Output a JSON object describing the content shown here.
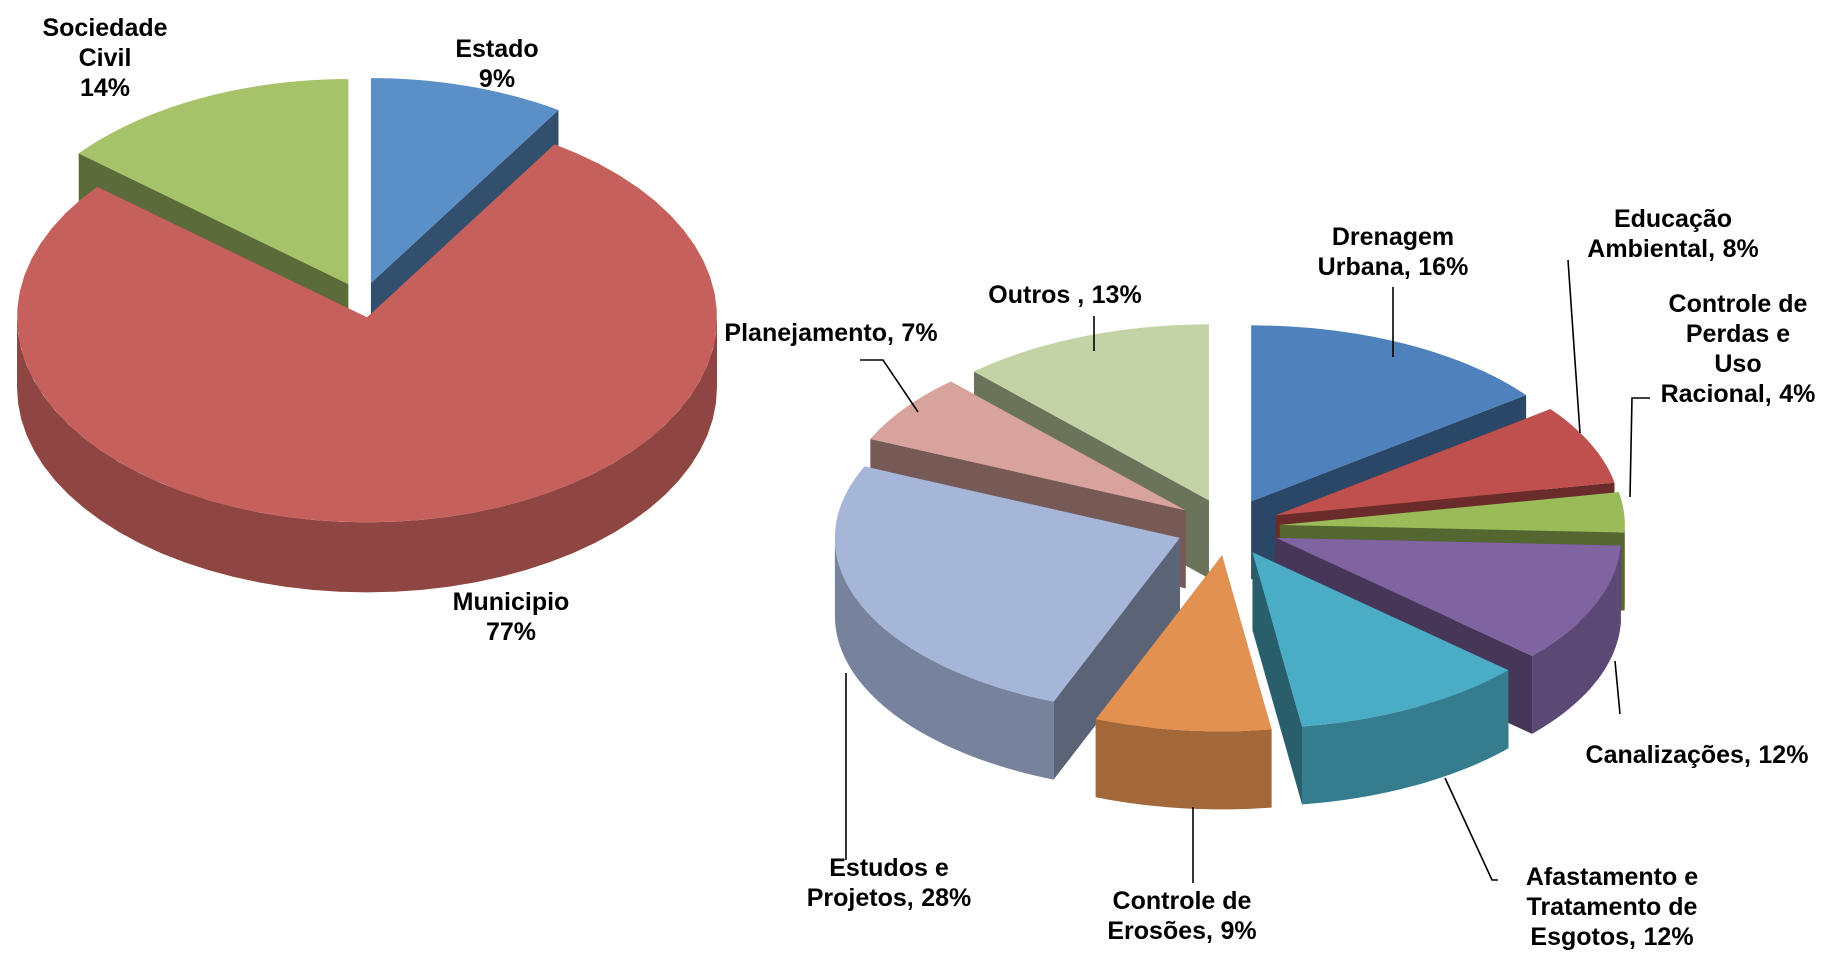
{
  "chart_data": [
    {
      "type": "pie",
      "categories": [
        "Estado",
        "Municipio",
        "Sociedade\nCivil"
      ],
      "values": [
        9,
        77,
        14
      ],
      "value_labels": [
        "9%",
        "77%",
        "14%"
      ],
      "colors": [
        "#5b8fc7",
        "#c6605c",
        "#a6c36a"
      ]
    },
    {
      "type": "pie",
      "categories": [
        "Drenagem\nUrbana,",
        "Educação\nAmbiental,",
        "Controle de\nPerdas e Uso\nRacional,",
        "Canalizações,",
        "Afastamento e\nTratamento de\nEsgotos,",
        "Controle de\nErosões,",
        "Estudos e\nProjetos,",
        "Planejamento,",
        "Outros ,"
      ],
      "values": [
        16,
        8,
        4,
        12,
        12,
        9,
        28,
        7,
        13
      ],
      "value_labels": [
        "16%",
        "8%",
        "4%",
        "12%",
        "12%",
        "9%",
        "28%",
        "7%",
        "13%"
      ],
      "colors": [
        "#4f81bd",
        "#c0504d",
        "#9bbb59",
        "#8064a2",
        "#4bacc6",
        "#e39150",
        "#a5b6d8",
        "#d8a29d",
        "#c3d3a5"
      ]
    }
  ]
}
